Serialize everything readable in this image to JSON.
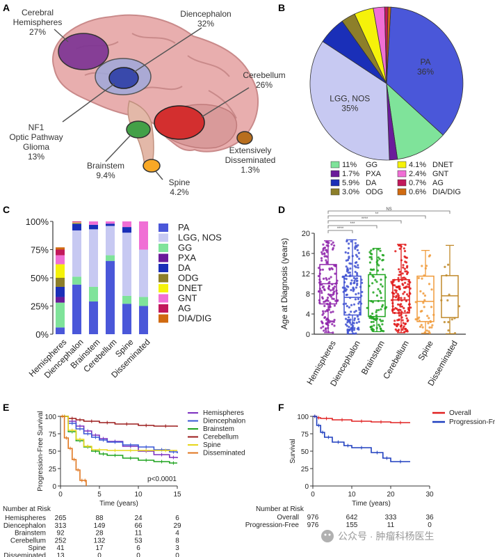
{
  "panel_labels": {
    "a": "A",
    "b": "B",
    "c": "C",
    "d": "D",
    "e": "E",
    "f": "F"
  },
  "panel_a": {
    "regions": [
      {
        "name": "Cerebral\nHemispheres",
        "pct": "27%",
        "color": "#7b3294"
      },
      {
        "name": "Diencephalon",
        "pct": "32%",
        "color": "#3949ab"
      },
      {
        "name": "Cerebellum",
        "pct": "26%",
        "color": "#d32f2f"
      },
      {
        "name": "NF1\nOptic Pathway\nGlioma",
        "pct": "13%",
        "color": "#9fa8da"
      },
      {
        "name": "Brainstem",
        "pct": "9.4%",
        "color": "#43a047"
      },
      {
        "name": "Spine",
        "pct": "4.2%",
        "color": "#f9a825"
      },
      {
        "name": "Extensively\nDisseminated",
        "pct": "1.3%",
        "color": "#b86e1e"
      }
    ]
  },
  "colors": {
    "PA": "#4a57d9",
    "LGG, NOS": "#c7c9f2",
    "GG": "#7fe39a",
    "PXA": "#6a1b9a",
    "DA": "#1a2fb8",
    "ODG": "#8d7f2a",
    "DNET": "#f5f20a",
    "GNT": "#f06fd5",
    "AG": "#c2185b",
    "DIA/DIG": "#d06a10"
  },
  "chart_data": [
    {
      "panel": "B",
      "type": "pie",
      "slices": [
        {
          "label": "PA",
          "value": 36
        },
        {
          "label": "GG",
          "value": 11
        },
        {
          "label": "PXA",
          "value": 1.7
        },
        {
          "label": "LGG, NOS",
          "value": 35
        },
        {
          "label": "DA",
          "value": 5.9
        },
        {
          "label": "ODG",
          "value": 3.0
        },
        {
          "label": "DNET",
          "value": 4.1
        },
        {
          "label": "GNT",
          "value": 2.4
        },
        {
          "label": "AG",
          "value": 0.7
        },
        {
          "label": "DIA/DIG",
          "value": 0.6
        }
      ],
      "slice_labels": {
        "PA": "PA\n36%",
        "LGG, NOS": "LGG, NOS\n35%"
      },
      "legend": [
        {
          "label": "GG",
          "pct": "11%"
        },
        {
          "label": "DNET",
          "pct": "4.1%"
        },
        {
          "label": "PXA",
          "pct": "1.7%"
        },
        {
          "label": "GNT",
          "pct": "2.4%"
        },
        {
          "label": "DA",
          "pct": "5.9%"
        },
        {
          "label": "AG",
          "pct": "0.7%"
        },
        {
          "label": "ODG",
          "pct": "3.0%"
        },
        {
          "label": "DIA/DIG",
          "pct": "0.6%"
        }
      ]
    },
    {
      "panel": "C",
      "type": "bar",
      "stacked": true,
      "categories": [
        "Hemispheres",
        "Diencephalon",
        "Brainstem",
        "Cerebellum",
        "Spine",
        "Disseminated"
      ],
      "ylim": [
        0,
        100
      ],
      "yticks": [
        "0%",
        "25%",
        "50%",
        "75%",
        "100%"
      ],
      "series": [
        {
          "name": "PA",
          "values": [
            6,
            44,
            29,
            65,
            27,
            25
          ]
        },
        {
          "name": "GG",
          "values": [
            22,
            7,
            13,
            5,
            7,
            8
          ]
        },
        {
          "name": "PXA",
          "values": [
            5,
            0,
            0,
            0,
            0,
            0
          ]
        },
        {
          "name": "LGG, NOS",
          "values": [
            0,
            41,
            51,
            26,
            56,
            42
          ]
        },
        {
          "name": "DA",
          "values": [
            9,
            6,
            4,
            2,
            5,
            0
          ]
        },
        {
          "name": "ODG",
          "values": [
            8,
            0.5,
            0,
            0,
            0,
            0
          ]
        },
        {
          "name": "DNET",
          "values": [
            12,
            0.5,
            0,
            0,
            0,
            0
          ]
        },
        {
          "name": "GNT",
          "values": [
            8,
            0.5,
            3,
            2,
            5,
            25
          ]
        },
        {
          "name": "AG",
          "values": [
            5,
            0.5,
            0,
            0,
            0,
            0
          ]
        },
        {
          "name": "DIA/DIG",
          "values": [
            2,
            0,
            0,
            0,
            0,
            0
          ]
        }
      ],
      "legend": [
        "PA",
        "LGG, NOS",
        "GG",
        "PXA",
        "DA",
        "ODG",
        "DNET",
        "GNT",
        "AG",
        "DIA/DIG"
      ]
    },
    {
      "panel": "D",
      "type": "scatter",
      "ylabel": "Age at Diagnosis (years)",
      "ylim": [
        0,
        20
      ],
      "yticks": [
        0,
        4,
        8,
        12,
        16,
        20
      ],
      "categories": [
        "Hemispheres",
        "Diencephalon",
        "Brainstem",
        "Cerebellum",
        "Spine",
        "Disseminated"
      ],
      "category_colors": [
        "#8e24aa",
        "#3f51d1",
        "#1ea41e",
        "#e01818",
        "#f09a3a",
        "#c0892a"
      ],
      "n": [
        265,
        313,
        92,
        252,
        41,
        13
      ],
      "boxes": [
        {
          "q1": 6,
          "median": 10,
          "q3": 13.8,
          "min": 0.3,
          "max": 18.5
        },
        {
          "q1": 3.8,
          "median": 7.3,
          "q3": 11.5,
          "min": 0.1,
          "max": 18.7
        },
        {
          "q1": 3.5,
          "median": 6.6,
          "q3": 11.8,
          "min": 0.5,
          "max": 17
        },
        {
          "q1": 4.2,
          "median": 6.8,
          "q3": 10.8,
          "min": 0.3,
          "max": 17.8
        },
        {
          "q1": 2.5,
          "median": 6.5,
          "q3": 11.5,
          "min": 0.2,
          "max": 16.6
        },
        {
          "q1": 3.3,
          "median": 7.6,
          "q3": 11.6,
          "min": 0.1,
          "max": 17.6
        }
      ],
      "significance": [
        {
          "from": "Hemispheres",
          "to": "Disseminated",
          "label": "NS"
        },
        {
          "from": "Hemispheres",
          "to": "Spine",
          "label": "**"
        },
        {
          "from": "Hemispheres",
          "to": "Cerebellum",
          "label": "****"
        },
        {
          "from": "Hemispheres",
          "to": "Brainstem",
          "label": "***"
        },
        {
          "from": "Hemispheres",
          "to": "Diencephalon",
          "label": "****"
        }
      ]
    },
    {
      "panel": "E",
      "type": "line",
      "ylabel": "Progression-Free Survival",
      "xlabel": "Time (years)",
      "xlim": [
        0,
        15
      ],
      "ylim": [
        0,
        100
      ],
      "xticks": [
        0,
        5,
        10,
        15
      ],
      "yticks": [
        0,
        25,
        50,
        75,
        100
      ],
      "pvalue": "p<0.0001",
      "series": [
        {
          "name": "Hemispheres",
          "color": "#7b2fbf",
          "x": [
            0,
            1,
            2,
            3,
            4,
            5,
            6,
            8,
            10,
            12,
            14,
            15
          ],
          "y": [
            100,
            93,
            86,
            79,
            73,
            68,
            64,
            57,
            50,
            45,
            41,
            40
          ]
        },
        {
          "name": "Diencephalon",
          "color": "#3957d6",
          "x": [
            0,
            1,
            2,
            3,
            4,
            5,
            6,
            8,
            10,
            12,
            14,
            15
          ],
          "y": [
            100,
            90,
            82,
            75,
            70,
            66,
            63,
            59,
            56,
            52,
            49,
            47
          ]
        },
        {
          "name": "Brainstem",
          "color": "#1fa31f",
          "x": [
            0,
            1,
            2,
            3,
            4,
            5,
            6,
            8,
            10,
            12,
            14,
            15
          ],
          "y": [
            100,
            78,
            65,
            56,
            50,
            46,
            44,
            40,
            37,
            35,
            33,
            33
          ]
        },
        {
          "name": "Cerebellum",
          "color": "#9b1b1b",
          "x": [
            0,
            1,
            2,
            3,
            5,
            7,
            10,
            12,
            15
          ],
          "y": [
            100,
            97,
            95,
            93,
            91,
            89,
            87,
            86,
            85
          ]
        },
        {
          "name": "Spine",
          "color": "#e6d619",
          "x": [
            0,
            1,
            2,
            3,
            4,
            6,
            8,
            10,
            12,
            15
          ],
          "y": [
            100,
            80,
            67,
            57,
            52,
            51,
            51,
            51,
            51,
            51
          ]
        },
        {
          "name": "Disseminated",
          "color": "#e0761f",
          "x": [
            0,
            0.5,
            1,
            1.5,
            2,
            2.5,
            3,
            3.3
          ],
          "y": [
            100,
            69,
            54,
            38,
            23,
            8,
            8,
            0
          ]
        }
      ],
      "risk_table": {
        "header": "Number at Risk",
        "rows": [
          {
            "label": "Hemispheres",
            "values": [
              "265",
              "88",
              "24",
              "6"
            ]
          },
          {
            "label": "Diencephalon",
            "values": [
              "313",
              "149",
              "66",
              "29"
            ]
          },
          {
            "label": "Brainstem",
            "values": [
              "92",
              "28",
              "11",
              "4"
            ]
          },
          {
            "label": "Cerebellum",
            "values": [
              "252",
              "132",
              "53",
              "8"
            ]
          },
          {
            "label": "Spine",
            "values": [
              "41",
              "17",
              "6",
              "3"
            ]
          },
          {
            "label": "Disseminated",
            "values": [
              "13",
              "0",
              "0",
              "0"
            ]
          }
        ]
      }
    },
    {
      "panel": "F",
      "type": "line",
      "ylabel": "Survival",
      "xlabel": "Time (years)",
      "xlim": [
        0,
        30
      ],
      "ylim": [
        0,
        100
      ],
      "xticks": [
        0,
        10,
        20,
        30
      ],
      "yticks": [
        0,
        25,
        50,
        75,
        100
      ],
      "series": [
        {
          "name": "Overall",
          "color": "#e02020",
          "x": [
            0,
            1,
            2,
            5,
            10,
            15,
            20,
            25
          ],
          "y": [
            100,
            98,
            97,
            95,
            93,
            92,
            91,
            91
          ]
        },
        {
          "name": "Progression-Free",
          "color": "#1f3fbf",
          "x": [
            0,
            1,
            2,
            3,
            5,
            8,
            10,
            15,
            18,
            20,
            25
          ],
          "y": [
            100,
            87,
            77,
            70,
            63,
            58,
            55,
            48,
            40,
            35,
            35
          ]
        }
      ],
      "risk_table": {
        "header": "Number at Risk",
        "rows": [
          {
            "label": "Overall",
            "values": [
              "976",
              "642",
              "333",
              "36"
            ]
          },
          {
            "label": "Progression-Free",
            "values": [
              "976",
              "155",
              "11",
              "0"
            ]
          }
        ]
      }
    }
  ],
  "watermark": "公众号 · 肿瘤科杨医生"
}
